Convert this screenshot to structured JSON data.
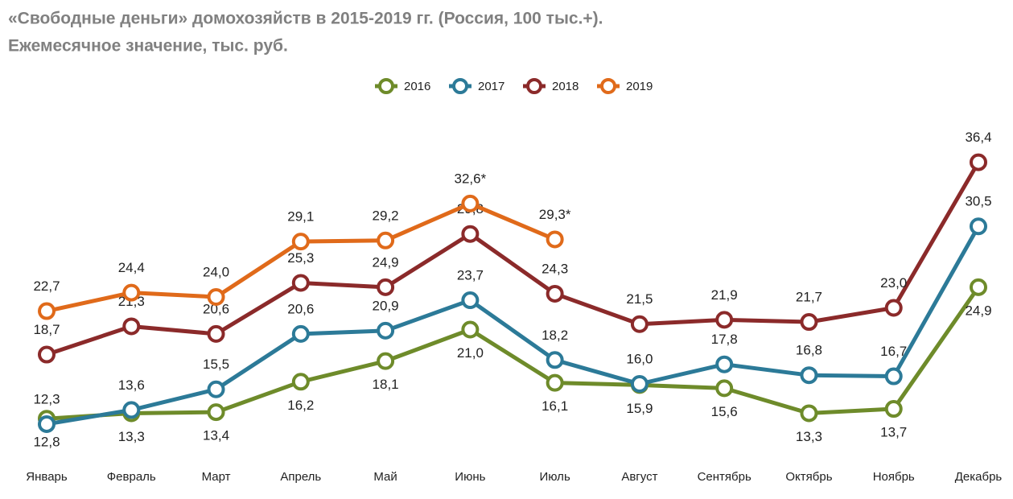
{
  "chart_data": {
    "type": "line",
    "title": "«Свободные деньги» домохозяйств в 2015-2019 гг. (Россия, 100 тыс.+).",
    "subtitle": "Ежемесячное значение, тыс. руб.",
    "categories": [
      "Январь",
      "Февраль",
      "Март",
      "Апрель",
      "Май",
      "Июнь",
      "Июль",
      "Август",
      "Сентябрь",
      "Октябрь",
      "Ноябрь",
      "Декабрь"
    ],
    "ylim": [
      10,
      38
    ],
    "legend": "top",
    "series": [
      {
        "name": "2016",
        "color": "#6e8b2a",
        "values": [
          12.8,
          13.3,
          13.4,
          16.2,
          18.1,
          21.0,
          16.1,
          15.9,
          15.6,
          13.3,
          13.7,
          24.9
        ],
        "value_labels": [
          "12,8",
          "13,3",
          "13,4",
          "16,2",
          "18,1",
          "21,0",
          "16,1",
          "15,9",
          "15,6",
          "13,3",
          "13,7",
          "24,9"
        ]
      },
      {
        "name": "2017",
        "color": "#2c7a98",
        "values": [
          12.3,
          13.6,
          15.5,
          20.6,
          20.9,
          23.7,
          18.2,
          16.0,
          17.8,
          16.8,
          16.7,
          30.5
        ],
        "value_labels": [
          "12,3",
          "13,6",
          "15,5",
          "20,6",
          "20,9",
          "23,7",
          "18,2",
          "16,0",
          "17,8",
          "16,8",
          "16,7",
          "30,5"
        ]
      },
      {
        "name": "2018",
        "color": "#8b2a2a",
        "values": [
          18.7,
          21.3,
          20.6,
          25.3,
          24.9,
          29.8,
          24.3,
          21.5,
          21.9,
          21.7,
          23.0,
          36.4
        ],
        "value_labels": [
          "18,7",
          "21,3",
          "20,6",
          "25,3",
          "24,9",
          "29,8",
          "24,3",
          "21,5",
          "21,9",
          "21,7",
          "23,0",
          "36,4"
        ]
      },
      {
        "name": "2019",
        "color": "#e06a1a",
        "values": [
          22.7,
          24.4,
          24.0,
          29.1,
          29.2,
          32.6,
          29.3,
          null,
          null,
          null,
          null,
          null
        ],
        "value_labels": [
          "22,7",
          "24,4",
          "24,0",
          "29,1",
          "29,2",
          "32,6*",
          "29,3*",
          null,
          null,
          null,
          null,
          null
        ]
      }
    ]
  }
}
